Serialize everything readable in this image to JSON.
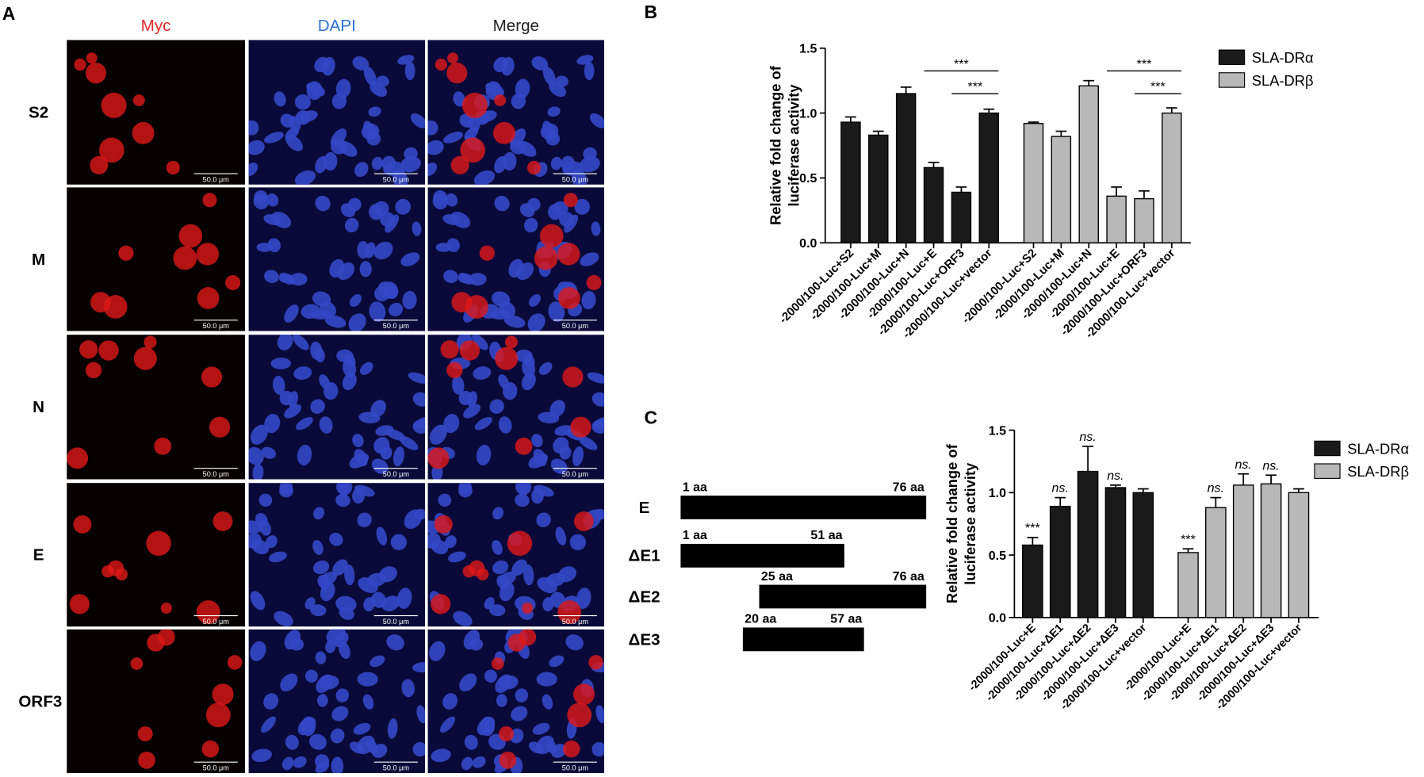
{
  "panel_labels": [
    "A",
    "B",
    "C"
  ],
  "panel_a": {
    "columns": [
      "Myc",
      "DAPI",
      "Merge"
    ],
    "rows": [
      "S2",
      "M",
      "N",
      "E",
      "ORF3"
    ],
    "scale_bar": "50.0 μm"
  },
  "panel_c_diagram": {
    "rows": [
      {
        "label": "E",
        "start": {
          "value": 1,
          "label": "1 aa"
        },
        "end": {
          "value": 76,
          "label": "76 aa"
        }
      },
      {
        "label": "ΔE1",
        "start": {
          "value": 1,
          "label": "1 aa"
        },
        "end": {
          "value": 51,
          "label": "51 aa"
        }
      },
      {
        "label": "ΔE2",
        "start": {
          "value": 25,
          "label": "25 aa"
        },
        "end": {
          "value": 76,
          "label": "76 aa"
        }
      },
      {
        "label": "ΔE3",
        "start": {
          "value": 20,
          "label": "20 aa"
        },
        "end": {
          "value": 57,
          "label": "57 aa"
        }
      }
    ]
  },
  "chart_data": [
    {
      "type": "bar",
      "ylabel": [
        "Relative fold change of",
        "luciferase activity"
      ],
      "categories": [
        "-2000/100-Luc+S2",
        "-2000/100-Luc+M",
        "-2000/100-Luc+N",
        "-2000/100-Luc+E",
        "-2000/100-Luc+ORF3",
        "-2000/100-Luc+vector"
      ],
      "series": [
        {
          "name": "SLA-DRα",
          "color": "#1a1a1a",
          "values": [
            0.93,
            0.83,
            1.15,
            0.58,
            0.39,
            1.0
          ],
          "errors": [
            0.04,
            0.03,
            0.05,
            0.04,
            0.04,
            0.03
          ]
        },
        {
          "name": "SLA-DRβ",
          "color": "#b8b8b8",
          "values": [
            0.92,
            0.82,
            1.21,
            0.36,
            0.34,
            1.0
          ],
          "errors": [
            0.01,
            0.04,
            0.04,
            0.07,
            0.06,
            0.04
          ]
        }
      ],
      "annotations": [
        "***",
        "***",
        "***",
        "***"
      ],
      "ylim": [
        0,
        1.5
      ],
      "yticks": [
        {
          "value": 0,
          "label": "0.0"
        },
        0.5,
        {
          "value": 1,
          "label": "1.0"
        },
        1.5
      ]
    },
    {
      "type": "bar",
      "ylabel": [
        "Relative fold change of",
        "luciferase activity"
      ],
      "categories": [
        "-2000/100-Luc+E",
        "-2000/100-Luc+ΔE1",
        "-2000/100-Luc+ΔE2",
        "-2000/100-Luc+ΔE3",
        "-2000/100-Luc+vector"
      ],
      "series": [
        {
          "name": "SLA-DRα",
          "color": "#1a1a1a",
          "values": [
            0.58,
            0.89,
            1.17,
            1.04,
            1.0
          ],
          "errors": [
            0.06,
            0.07,
            0.2,
            0.02,
            0.03
          ],
          "labels": [
            "***",
            "ns.",
            "ns.",
            "ns.",
            null
          ]
        },
        {
          "name": "SLA-DRβ",
          "color": "#b8b8b8",
          "values": [
            0.52,
            0.88,
            1.06,
            1.07,
            1.0
          ],
          "errors": [
            0.03,
            0.08,
            0.09,
            0.07,
            0.03
          ],
          "labels": [
            "***",
            "ns.",
            "ns.",
            "ns.",
            null
          ]
        }
      ],
      "ylim": [
        0,
        1.5
      ],
      "yticks": [
        {
          "value": 0,
          "label": "0.0"
        },
        0.5,
        {
          "value": 1,
          "label": "1.0"
        },
        1.5
      ]
    }
  ]
}
